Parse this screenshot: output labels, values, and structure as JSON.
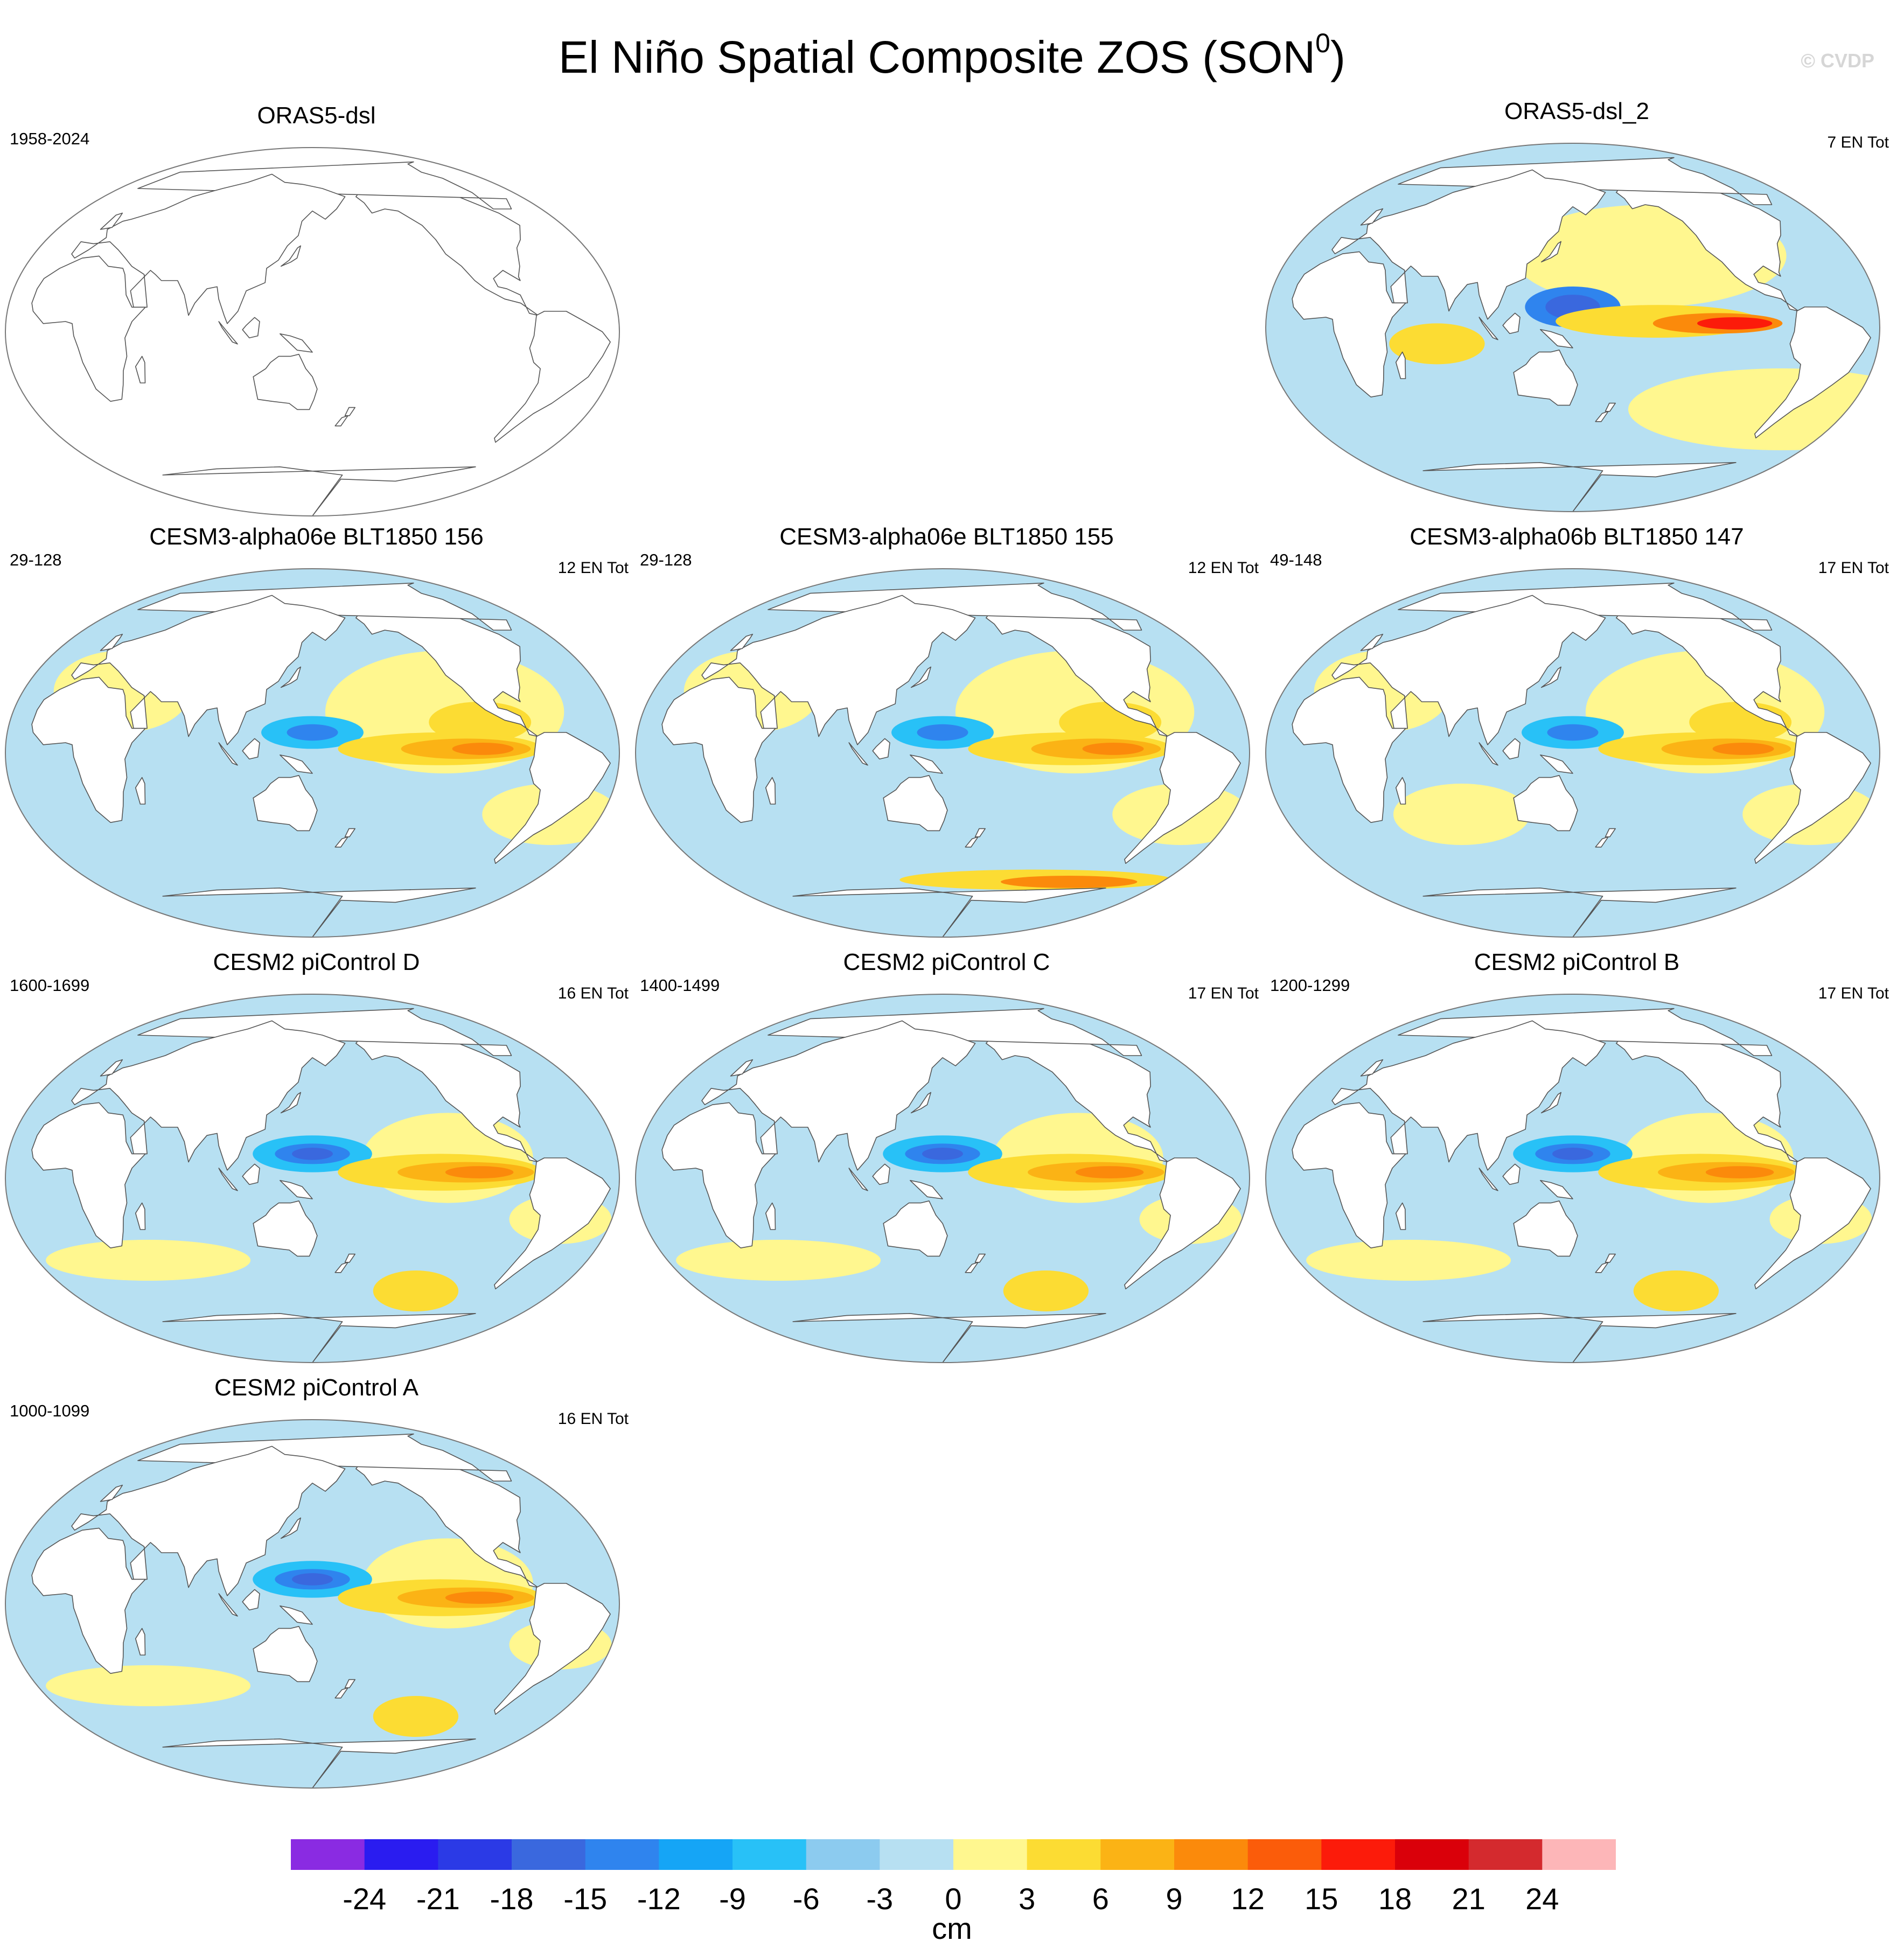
{
  "title_main": "El Niño Spatial Composite ZOS (SON",
  "title_sup": "0",
  "title_close": ")",
  "copyright": "© CVDP",
  "panels": [
    {
      "title": "ORAS5-dsl",
      "period": "1958-2024",
      "count": "",
      "pattern": "none"
    },
    {
      "title": "ORAS5-dsl_2",
      "period": "",
      "count": "7 EN Tot",
      "pattern": "obs"
    },
    {
      "title": "CESM3-alpha06e BLT1850 156",
      "period": "29-128",
      "count": "12 EN Tot",
      "pattern": "cesm3"
    },
    {
      "title": "CESM3-alpha06e BLT1850 155",
      "period": "29-128",
      "count": "12 EN Tot",
      "pattern": "cesm3b"
    },
    {
      "title": "CESM3-alpha06b BLT1850 147",
      "period": "49-148",
      "count": "17 EN Tot",
      "pattern": "cesm3c"
    },
    {
      "title": "CESM2 piControl D",
      "period": "1600-1699",
      "count": "16 EN Tot",
      "pattern": "cesm2"
    },
    {
      "title": "CESM2 piControl C",
      "period": "1400-1499",
      "count": "17 EN Tot",
      "pattern": "cesm2"
    },
    {
      "title": "CESM2 piControl B",
      "period": "1200-1299",
      "count": "17 EN Tot",
      "pattern": "cesm2"
    },
    {
      "title": "CESM2 piControl A",
      "period": "1000-1099",
      "count": "16 EN Tot",
      "pattern": "cesm2"
    }
  ],
  "colorbar": {
    "colors": [
      "#8a2be2",
      "#2a1cf0",
      "#2b3ae6",
      "#3a68de",
      "#2f84ee",
      "#15a5f6",
      "#28c1f7",
      "#8ccbef",
      "#b7e0f2",
      "#fff78f",
      "#fcdc33",
      "#fbb315",
      "#fb8a0b",
      "#fb5c0a",
      "#fc1b0a",
      "#da000a",
      "#d42a2e",
      "#fdb6b8"
    ],
    "labels": [
      "-24",
      "-21",
      "-18",
      "-15",
      "-12",
      "-9",
      "-6",
      "-3",
      "0",
      "3",
      "6",
      "9",
      "12",
      "15",
      "18",
      "21",
      "24"
    ],
    "unit": "cm"
  }
}
